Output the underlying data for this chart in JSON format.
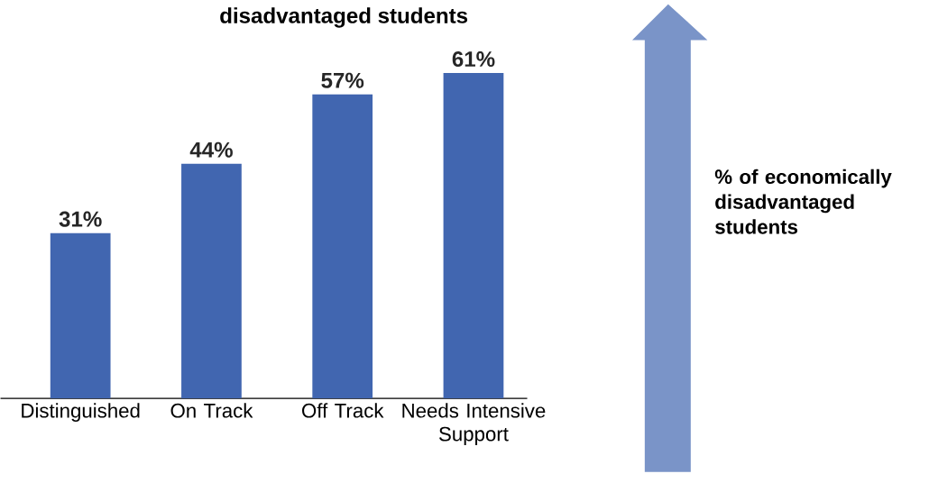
{
  "chart_data": {
    "type": "bar",
    "title": "disadvantaged students",
    "categories": [
      "Distinguished",
      "On Track",
      "Off Track",
      "Needs Intensive Support"
    ],
    "values": [
      31,
      44,
      57,
      61
    ],
    "value_labels": [
      "31%",
      "44%",
      "57%",
      "61%"
    ],
    "color": "#4166b0",
    "annotations": [
      "% of economically disadvantaged students"
    ]
  }
}
